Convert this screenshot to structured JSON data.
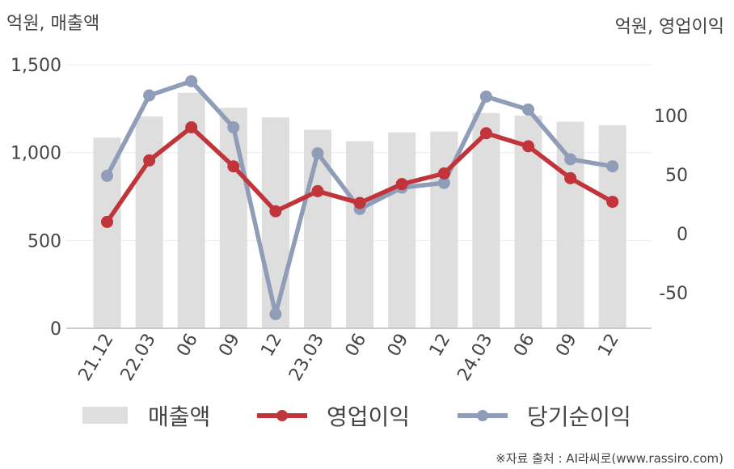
{
  "chart_data": {
    "type": "bar+line",
    "categories": [
      "21.12",
      "22.03",
      "06",
      "09",
      "12",
      "23.03",
      "06",
      "09",
      "12",
      "24.03",
      "06",
      "09",
      "12"
    ],
    "left_axis": {
      "title": "억원, 매출액",
      "range": [
        0,
        1500
      ],
      "ticks": [
        0,
        500,
        1000,
        1500
      ],
      "tick_labels": [
        "0",
        "500",
        "1,000",
        "1,500"
      ]
    },
    "right_axis": {
      "title": "억원, 영업이익",
      "range": [
        -80,
        143
      ],
      "ticks": [
        -50,
        0,
        50,
        100
      ],
      "tick_labels": [
        "-50",
        "0",
        "50",
        "100"
      ]
    },
    "series": [
      {
        "name": "매출액",
        "type": "bar",
        "axis": "left",
        "color": "#dedede",
        "values": [
          1085,
          1205,
          1340,
          1255,
          1200,
          1130,
          1065,
          1115,
          1120,
          1225,
          1210,
          1175,
          1155
        ]
      },
      {
        "name": "영업이익",
        "type": "line",
        "axis": "right",
        "color": "#c0343a",
        "values": [
          10,
          62,
          90,
          57,
          19,
          36,
          26,
          42,
          51,
          85,
          74,
          47,
          27
        ]
      },
      {
        "name": "당기순이익",
        "type": "line",
        "axis": "right",
        "color": "#8f9db8",
        "values": [
          49,
          117,
          129,
          90,
          -68,
          68,
          21,
          39,
          43,
          116,
          105,
          63,
          57
        ]
      }
    ],
    "grid": true,
    "legend_position": "bottom"
  },
  "source_note": "※자료 출처 : AI라씨로(www.rassiro.com)"
}
